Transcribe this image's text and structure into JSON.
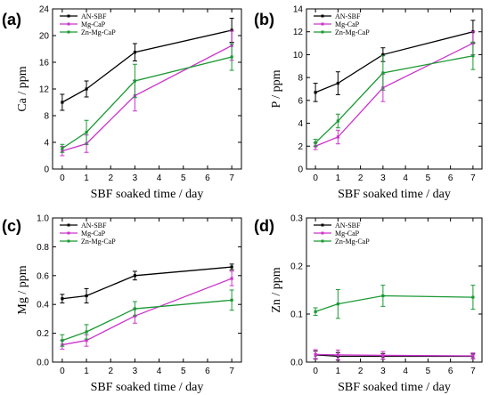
{
  "chart_data": [
    {
      "type": "line",
      "panel_label": "(a)",
      "xlabel": "SBF soaked time / day",
      "ylabel": "Ca / ppm",
      "xlim": [
        -0.4,
        7.4
      ],
      "ylim": [
        0,
        24
      ],
      "xticks": [
        0,
        1,
        2,
        3,
        4,
        5,
        6,
        7
      ],
      "yticks": [
        0,
        4,
        8,
        12,
        16,
        20,
        24
      ],
      "ytick_labels": [
        "0",
        "4",
        "8",
        "12",
        "16",
        "20",
        "24"
      ],
      "legend_position": "top-left",
      "x": [
        0,
        1,
        3,
        7
      ],
      "series": [
        {
          "name": "AN-SBF",
          "color": "#000000",
          "values": [
            10.0,
            12.0,
            17.5,
            20.8
          ],
          "errors": [
            1.2,
            1.2,
            1.3,
            1.8
          ]
        },
        {
          "name": "Mg-CaP",
          "color": "#cc33cc",
          "values": [
            2.7,
            3.8,
            11.0,
            18.5
          ],
          "errors": [
            0.7,
            1.3,
            2.3,
            2.2
          ]
        },
        {
          "name": "Zn-Mg-CaP",
          "color": "#1a9933",
          "values": [
            3.1,
            5.5,
            13.2,
            16.8
          ],
          "errors": [
            0.6,
            1.8,
            2.5,
            2.0
          ]
        }
      ]
    },
    {
      "type": "line",
      "panel_label": "(b)",
      "xlabel": "SBF soaked time / day",
      "ylabel": "P / ppm",
      "xlim": [
        -0.4,
        7.4
      ],
      "ylim": [
        0,
        14
      ],
      "xticks": [
        0,
        1,
        2,
        3,
        4,
        5,
        6,
        7
      ],
      "yticks": [
        0,
        2,
        4,
        6,
        8,
        10,
        12,
        14
      ],
      "ytick_labels": [
        "0",
        "2",
        "4",
        "6",
        "8",
        "10",
        "12",
        "14"
      ],
      "legend_position": "top-left",
      "x": [
        0,
        1,
        3,
        7
      ],
      "series": [
        {
          "name": "AN-SBF",
          "color": "#000000",
          "values": [
            6.7,
            7.5,
            10.0,
            12.0
          ],
          "errors": [
            0.8,
            1.0,
            0.6,
            1.0
          ]
        },
        {
          "name": "Mg-CaP",
          "color": "#cc33cc",
          "values": [
            2.0,
            2.8,
            7.1,
            11.0
          ],
          "errors": [
            0.3,
            0.6,
            1.2,
            1.0
          ]
        },
        {
          "name": "Zn-Mg-CaP",
          "color": "#1a9933",
          "values": [
            2.3,
            4.2,
            8.4,
            9.9
          ],
          "errors": [
            0.3,
            0.6,
            1.5,
            1.2
          ]
        }
      ]
    },
    {
      "type": "line",
      "panel_label": "(c)",
      "xlabel": "SBF soaked time / day",
      "ylabel": "Mg / ppm",
      "xlim": [
        -0.4,
        7.4
      ],
      "ylim": [
        0,
        1.0
      ],
      "xticks": [
        0,
        1,
        2,
        3,
        4,
        5,
        6,
        7
      ],
      "yticks": [
        0,
        0.2,
        0.4,
        0.6,
        0.8,
        1.0
      ],
      "ytick_labels": [
        "0.0",
        "0.2",
        "0.4",
        "0.6",
        "0.8",
        "1.0"
      ],
      "legend_position": "top-left",
      "x": [
        0,
        1,
        3,
        7
      ],
      "series": [
        {
          "name": "AN-SBF",
          "color": "#000000",
          "values": [
            0.44,
            0.46,
            0.6,
            0.66
          ],
          "errors": [
            0.03,
            0.05,
            0.03,
            0.02
          ]
        },
        {
          "name": "Mg-CaP",
          "color": "#cc33cc",
          "values": [
            0.12,
            0.15,
            0.32,
            0.58
          ],
          "errors": [
            0.03,
            0.04,
            0.05,
            0.05
          ]
        },
        {
          "name": "Zn-Mg-CaP",
          "color": "#1a9933",
          "values": [
            0.15,
            0.21,
            0.37,
            0.43
          ],
          "errors": [
            0.04,
            0.05,
            0.05,
            0.07
          ]
        }
      ]
    },
    {
      "type": "line",
      "panel_label": "(d)",
      "xlabel": "SBF soaked time / day",
      "ylabel": "Zn / ppm",
      "xlim": [
        -0.4,
        7.4
      ],
      "ylim": [
        0,
        0.3
      ],
      "xticks": [
        0,
        1,
        2,
        3,
        4,
        5,
        6,
        7
      ],
      "yticks": [
        0,
        0.1,
        0.2,
        0.3
      ],
      "ytick_labels": [
        "0.0",
        "0.1",
        "0.2",
        "0.3"
      ],
      "legend_position": "top-left",
      "x": [
        0,
        1,
        3,
        7
      ],
      "series": [
        {
          "name": "AN-SBF",
          "color": "#000000",
          "values": [
            0.015,
            0.012,
            0.012,
            0.012
          ],
          "errors": [
            0.008,
            0.008,
            0.006,
            0.005
          ]
        },
        {
          "name": "Mg-CaP",
          "color": "#cc33cc",
          "values": [
            0.016,
            0.015,
            0.014,
            0.013
          ],
          "errors": [
            0.01,
            0.01,
            0.008,
            0.006
          ]
        },
        {
          "name": "Zn-Mg-CaP",
          "color": "#1a9933",
          "values": [
            0.105,
            0.121,
            0.138,
            0.135
          ],
          "errors": [
            0.008,
            0.03,
            0.022,
            0.025
          ]
        }
      ]
    }
  ]
}
